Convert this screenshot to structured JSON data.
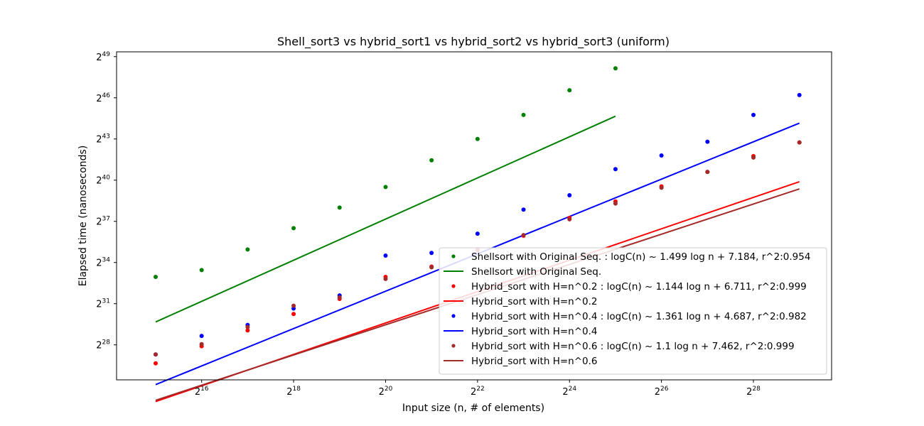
{
  "chart_data": {
    "type": "scatter",
    "title": "Shell_sort3 vs  hybrid_sort1 vs hybrid_sort2 vs hybrid_sort3  (uniform)",
    "xlabel": "Input size (n, # of elements)",
    "ylabel": "Elapsed time (nanoseconds)",
    "xscale": "log2",
    "yscale": "log2",
    "xlim_log2": [
      14.15,
      29.7
    ],
    "ylim_log2": [
      25.45,
      49.35
    ],
    "x_ticks": [
      {
        "base": "2",
        "exp": "16",
        "value": 16
      },
      {
        "base": "2",
        "exp": "18",
        "value": 18
      },
      {
        "base": "2",
        "exp": "20",
        "value": 20
      },
      {
        "base": "2",
        "exp": "22",
        "value": 22
      },
      {
        "base": "2",
        "exp": "24",
        "value": 24
      },
      {
        "base": "2",
        "exp": "26",
        "value": 26
      },
      {
        "base": "2",
        "exp": "28",
        "value": 28
      }
    ],
    "y_ticks": [
      {
        "base": "2",
        "exp": "28",
        "value": 28
      },
      {
        "base": "2",
        "exp": "31",
        "value": 31
      },
      {
        "base": "2",
        "exp": "34",
        "value": 34
      },
      {
        "base": "2",
        "exp": "37",
        "value": 37
      },
      {
        "base": "2",
        "exp": "40",
        "value": 40
      },
      {
        "base": "2",
        "exp": "43",
        "value": 43
      },
      {
        "base": "2",
        "exp": "46",
        "value": 46
      },
      {
        "base": "2",
        "exp": "49",
        "value": 49
      }
    ],
    "legend_position": "lower-right",
    "series": [
      {
        "name": "Shellsort with Original Seq. : logC(n) ~ 1.499 log n  + 7.184, r^2:0.954",
        "kind": "points",
        "color": "#008000",
        "x_log2": [
          15,
          16,
          17,
          18,
          19,
          20,
          21,
          22,
          23,
          24,
          25
        ],
        "y_log2": [
          32.95,
          33.45,
          34.95,
          36.5,
          38.0,
          39.5,
          41.45,
          43.0,
          44.75,
          46.55,
          48.15
        ]
      },
      {
        "name": "Shellsort with Original Seq.",
        "kind": "line",
        "color": "#008000",
        "fit": {
          "slope": 1.499,
          "intercept": 7.184
        },
        "x_range_log2": [
          15,
          25
        ]
      },
      {
        "name": "Hybrid_sort with H=n^0.2 : logC(n) ~ 1.144 log n  + 6.711, r^2:0.999",
        "kind": "points",
        "color": "#ff0000",
        "x_log2": [
          15,
          16,
          17,
          18,
          19,
          20,
          21,
          22,
          23,
          24,
          25,
          26,
          27,
          28,
          29
        ],
        "y_log2": [
          26.65,
          27.9,
          29.05,
          30.25,
          31.35,
          32.95,
          33.7,
          34.9,
          35.95,
          37.25,
          38.45,
          39.55,
          40.6,
          41.75,
          42.75
        ]
      },
      {
        "name": "Hybrid_sort with H=n^0.2",
        "kind": "line",
        "color": "#ff0000",
        "fit": {
          "slope": 1.144,
          "intercept": 6.711
        },
        "x_range_log2": [
          15,
          29
        ]
      },
      {
        "name": "Hybrid_sort with H=n^0.4 : logC(n) ~ 1.361 log n  + 4.687, r^2:0.982",
        "kind": "points",
        "color": "#0000ff",
        "x_log2": [
          15,
          16,
          17,
          18,
          19,
          20,
          21,
          22,
          23,
          24,
          25,
          26,
          27,
          28,
          29
        ],
        "y_log2": [
          27.3,
          28.65,
          29.45,
          30.65,
          31.6,
          34.5,
          34.7,
          36.1,
          37.85,
          38.9,
          40.8,
          41.8,
          42.8,
          44.75,
          46.2
        ]
      },
      {
        "name": "Hybrid_sort with H=n^0.4",
        "kind": "line",
        "color": "#0000ff",
        "fit": {
          "slope": 1.361,
          "intercept": 4.687
        },
        "x_range_log2": [
          15,
          29
        ]
      },
      {
        "name": "Hybrid_sort with H=n^0.6 : logC(n) ~ 1.1 log n  + 7.462, r^2:0.999",
        "kind": "points",
        "color": "#a52a2a",
        "x_log2": [
          15,
          16,
          17,
          18,
          19,
          20,
          21,
          22,
          23,
          24,
          25,
          26,
          27,
          28,
          29
        ],
        "y_log2": [
          27.3,
          28.05,
          29.3,
          30.85,
          31.45,
          32.8,
          33.65,
          34.95,
          36.0,
          37.15,
          38.3,
          39.45,
          40.6,
          41.65,
          42.75
        ]
      },
      {
        "name": "Hybrid_sort with H=n^0.6",
        "kind": "line",
        "color": "#a52a2a",
        "fit": {
          "slope": 1.1,
          "intercept": 7.462
        },
        "x_range_log2": [
          15,
          29
        ]
      }
    ]
  }
}
